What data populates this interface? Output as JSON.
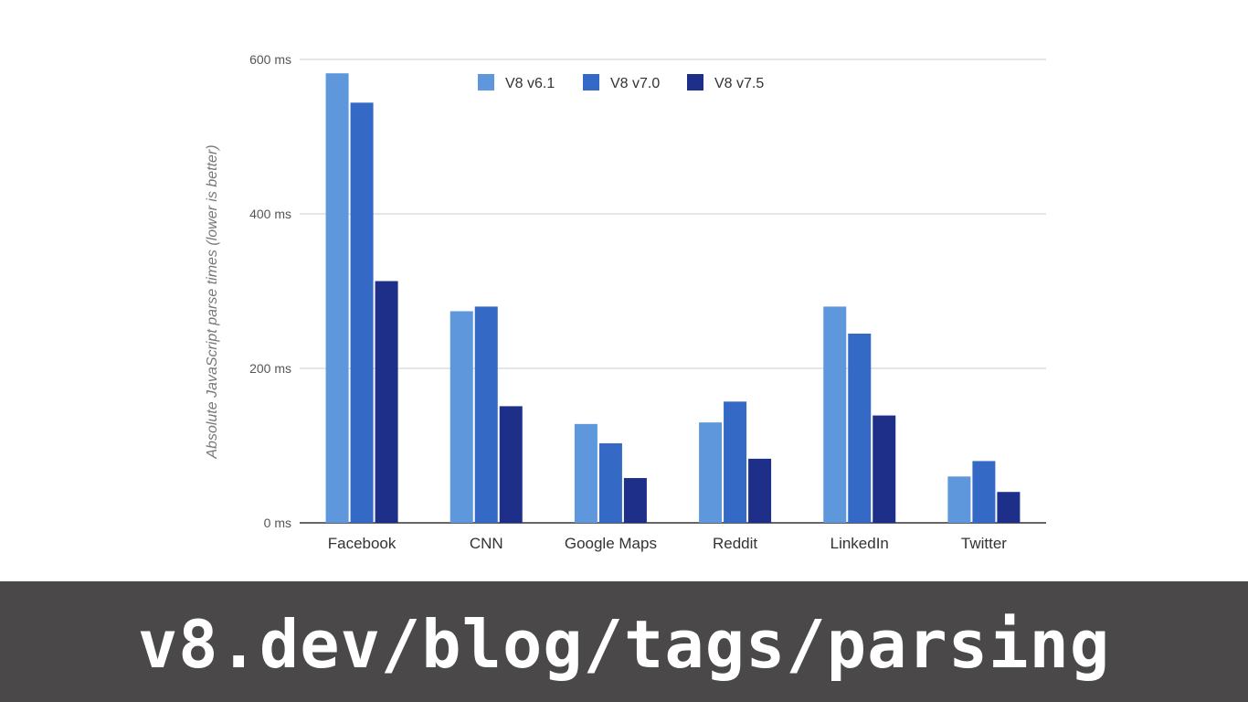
{
  "chart_data": {
    "type": "bar",
    "ylabel": "Absolute JavaScript parse times (lower is better)",
    "ylim": [
      0,
      600
    ],
    "yticks": [
      {
        "value": 0,
        "label": "0 ms"
      },
      {
        "value": 200,
        "label": "200 ms"
      },
      {
        "value": 400,
        "label": "400 ms"
      },
      {
        "value": 600,
        "label": "600 ms"
      }
    ],
    "grid": true,
    "legend_position": "top-center",
    "categories": [
      "Facebook",
      "CNN",
      "Google Maps",
      "Reddit",
      "LinkedIn",
      "Twitter"
    ],
    "series": [
      {
        "name": "V8 v6.1",
        "color": "#5f97dd",
        "values": [
          582,
          274,
          128,
          130,
          280,
          60
        ]
      },
      {
        "name": "V8 v7.0",
        "color": "#3469c5",
        "values": [
          544,
          280,
          103,
          157,
          245,
          80
        ]
      },
      {
        "name": "V8 v7.5",
        "color": "#1e2f8a",
        "values": [
          313,
          151,
          58,
          83,
          139,
          40
        ]
      }
    ]
  },
  "footer": {
    "url": "v8.dev/blog/tags/parsing"
  }
}
